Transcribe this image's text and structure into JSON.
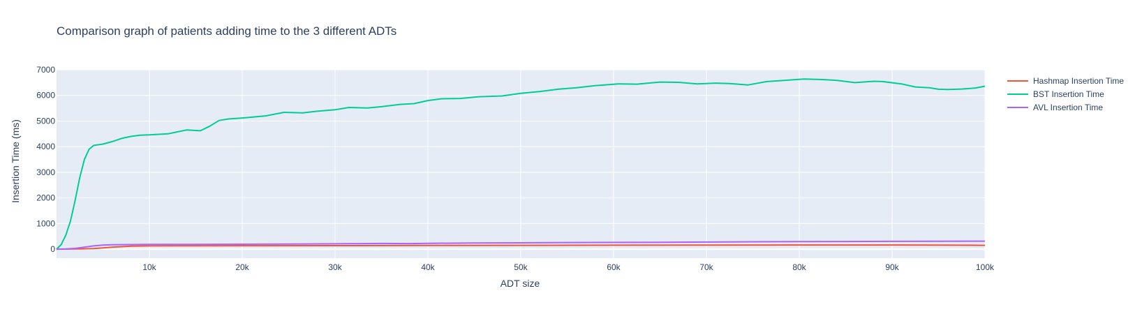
{
  "chart_data": {
    "type": "line",
    "title": "Comparison graph of patients adding time to the 3 different ADTs",
    "xlabel": "ADT size",
    "ylabel": "Insertion Time (ms)",
    "xlim": [
      0,
      100000
    ],
    "ylim": [
      -350,
      7000
    ],
    "x_ticks": [
      10000,
      20000,
      30000,
      40000,
      50000,
      60000,
      70000,
      80000,
      90000,
      100000
    ],
    "x_tick_labels": [
      "10k",
      "20k",
      "30k",
      "40k",
      "50k",
      "60k",
      "70k",
      "80k",
      "90k",
      "100k"
    ],
    "y_ticks": [
      0,
      1000,
      2000,
      3000,
      4000,
      5000,
      6000,
      7000
    ],
    "y_tick_labels": [
      "0",
      "1000",
      "2000",
      "3000",
      "4000",
      "5000",
      "6000",
      "7000"
    ],
    "grid": true,
    "legend_position": "right",
    "plot_background": "#e5ecf6",
    "series": [
      {
        "name": "Hashmap Insertion Time",
        "color": "#EF553B",
        "x": [
          0,
          1000,
          2000,
          3000,
          4000,
          5000,
          6000,
          8000,
          10000,
          15000,
          20000,
          30000,
          40000,
          50000,
          60000,
          70000,
          80000,
          90000,
          95000,
          100000
        ],
        "y": [
          0,
          5,
          10,
          15,
          25,
          50,
          80,
          120,
          130,
          135,
          138,
          140,
          145,
          150,
          155,
          160,
          165,
          165,
          160,
          150
        ]
      },
      {
        "name": "BST Insertion Time",
        "color": "#00CC96",
        "x": [
          0,
          500,
          1000,
          1500,
          2000,
          2500,
          3000,
          3500,
          4000,
          5000,
          6000,
          7000,
          8000,
          9000,
          10000,
          12000,
          14000,
          15500,
          16500,
          17500,
          18500,
          20000,
          22500,
          24500,
          26500,
          28000,
          30000,
          31500,
          33500,
          35000,
          37000,
          38500,
          40000,
          41500,
          43500,
          45500,
          48000,
          50000,
          52000,
          54000,
          56000,
          58000,
          60500,
          62500,
          65000,
          67000,
          69000,
          71000,
          72500,
          74500,
          76500,
          78500,
          80500,
          82500,
          84000,
          86000,
          88000,
          89000,
          91000,
          92500,
          94000,
          95000,
          96000,
          97500,
          99000,
          100000
        ],
        "y": [
          0,
          180,
          550,
          1100,
          1900,
          2800,
          3500,
          3900,
          4050,
          4100,
          4200,
          4320,
          4400,
          4450,
          4460,
          4500,
          4650,
          4620,
          4800,
          5020,
          5080,
          5120,
          5200,
          5340,
          5320,
          5380,
          5440,
          5530,
          5510,
          5560,
          5650,
          5680,
          5800,
          5870,
          5880,
          5950,
          5980,
          6080,
          6150,
          6240,
          6300,
          6380,
          6450,
          6440,
          6520,
          6510,
          6450,
          6480,
          6460,
          6410,
          6540,
          6590,
          6640,
          6620,
          6590,
          6500,
          6550,
          6540,
          6450,
          6330,
          6300,
          6240,
          6230,
          6250,
          6290,
          6360
        ]
      },
      {
        "name": "AVL Insertion Time",
        "color": "#AB63FA",
        "x": [
          0,
          1000,
          2000,
          3000,
          4000,
          5000,
          6000,
          8000,
          10000,
          15000,
          20000,
          25000,
          30000,
          35000,
          38000,
          40000,
          45000,
          50000,
          55000,
          60000,
          65000,
          70000,
          75000,
          80000,
          85000,
          90000,
          95000,
          100000
        ],
        "y": [
          0,
          10,
          30,
          80,
          130,
          160,
          175,
          180,
          185,
          190,
          195,
          200,
          210,
          225,
          220,
          230,
          240,
          250,
          260,
          265,
          270,
          280,
          290,
          295,
          300,
          305,
          310,
          315
        ]
      }
    ]
  }
}
